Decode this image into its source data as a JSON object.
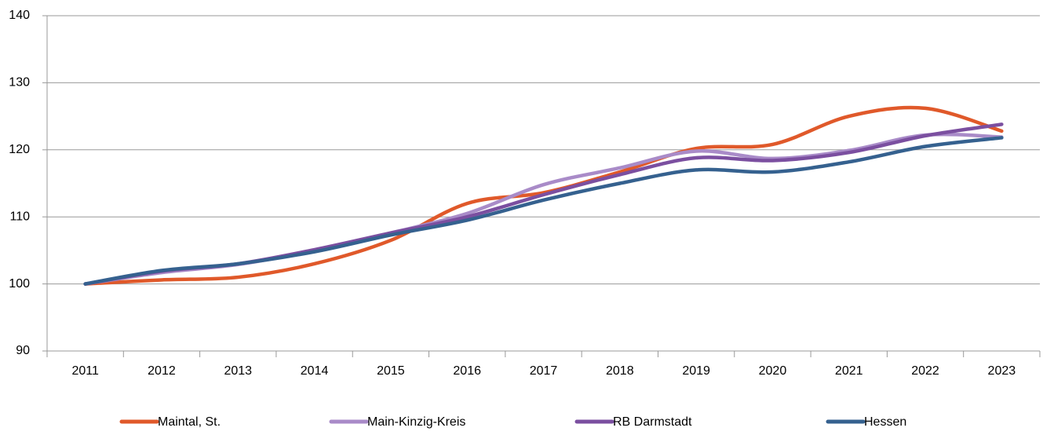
{
  "chart_data": {
    "type": "line",
    "categories": [
      "2011",
      "2012",
      "2013",
      "2014",
      "2015",
      "2016",
      "2017",
      "2018",
      "2019",
      "2020",
      "2021",
      "2022",
      "2023"
    ],
    "series": [
      {
        "name": "Maintal, St.",
        "color": "#e0592a",
        "values": [
          100,
          100.6,
          101.0,
          103.0,
          106.5,
          112.0,
          113.6,
          116.7,
          120.2,
          120.8,
          125.0,
          126.2,
          122.8
        ]
      },
      {
        "name": "Main-Kinzig-Kreis",
        "color": "#a98bc8",
        "values": [
          100,
          101.7,
          102.9,
          105.0,
          107.6,
          110.5,
          114.8,
          117.3,
          119.8,
          118.7,
          119.9,
          122.2,
          121.9
        ]
      },
      {
        "name": "RB Darmstadt",
        "color": "#7b4fa0",
        "values": [
          100,
          101.9,
          103.0,
          105.1,
          107.6,
          110.0,
          113.3,
          116.3,
          118.8,
          118.4,
          119.6,
          122.1,
          123.8
        ]
      },
      {
        "name": "Hessen",
        "color": "#35618f",
        "values": [
          100,
          102.0,
          103.0,
          104.8,
          107.3,
          109.5,
          112.5,
          115.0,
          117.0,
          116.7,
          118.2,
          120.5,
          121.8
        ]
      }
    ],
    "ylim": [
      90,
      140
    ],
    "yticks": [
      90,
      100,
      110,
      120,
      130,
      140
    ],
    "grid": true,
    "legend": "bottom"
  }
}
